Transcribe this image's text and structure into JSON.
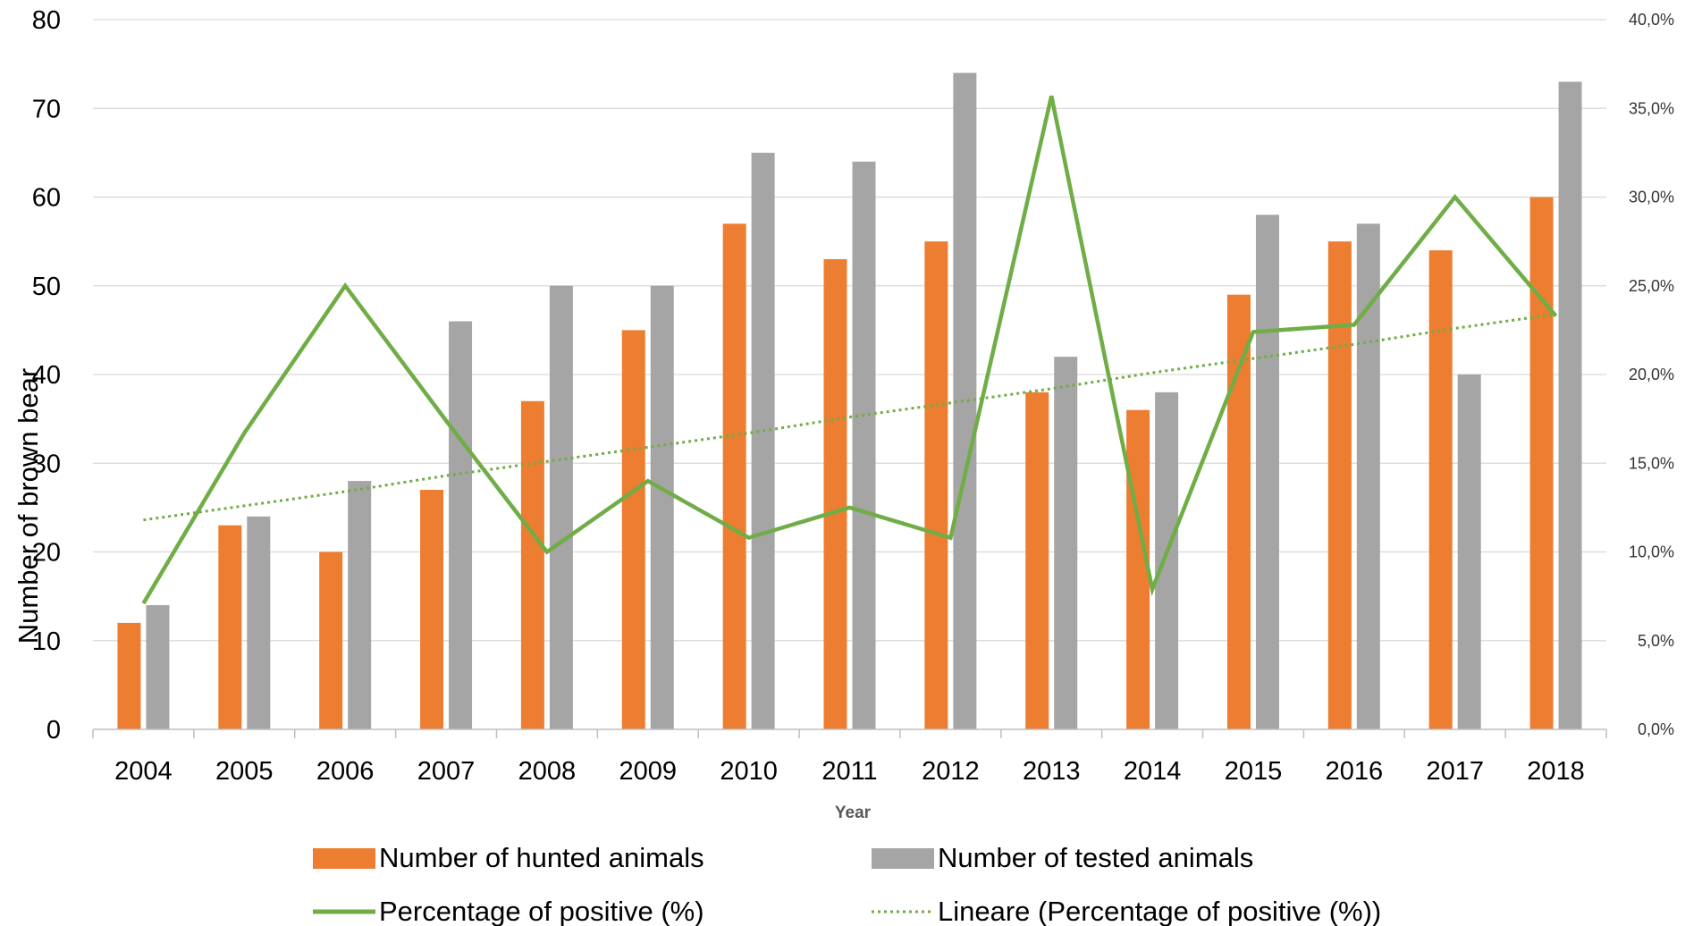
{
  "chart_data": {
    "type": "bar",
    "title": "",
    "xlabel": "Year",
    "ylabel": "Number of brown bear",
    "categories": [
      "2004",
      "2005",
      "2006",
      "2007",
      "2008",
      "2009",
      "2010",
      "2011",
      "2012",
      "2013",
      "2014",
      "2015",
      "2016",
      "2017",
      "2018"
    ],
    "series": [
      {
        "name": "Number of hunted animals",
        "kind": "bar",
        "axis": "left",
        "color": "#ED7D31",
        "values": [
          12,
          23,
          20,
          27,
          37,
          45,
          57,
          53,
          55,
          38,
          36,
          49,
          55,
          54,
          60
        ]
      },
      {
        "name": "Number of tested animals",
        "kind": "bar",
        "axis": "left",
        "color": "#A5A5A5",
        "values": [
          14,
          24,
          28,
          46,
          50,
          50,
          65,
          64,
          74,
          42,
          38,
          58,
          57,
          40,
          73
        ]
      },
      {
        "name": "Percentage of positive (%)",
        "kind": "line",
        "axis": "right",
        "color": "#70AD47",
        "values": [
          7.1,
          16.7,
          25.0,
          17.4,
          10.0,
          14.0,
          10.8,
          12.5,
          10.8,
          35.7,
          7.9,
          22.4,
          22.8,
          30.0,
          23.3
        ]
      },
      {
        "name": "Lineare (Percentage of positive (%))",
        "kind": "trendline",
        "axis": "right",
        "color": "#70AD47",
        "values": [
          11.8,
          12.6,
          13.4,
          14.3,
          15.1,
          15.9,
          16.7,
          17.6,
          18.4,
          19.2,
          20.1,
          20.9,
          21.7,
          22.6,
          23.4
        ]
      }
    ],
    "yleft": {
      "lim": [
        0,
        80
      ],
      "ticks": [
        "0",
        "10",
        "20",
        "30",
        "40",
        "50",
        "60",
        "70",
        "80"
      ]
    },
    "yright": {
      "lim": [
        0,
        40
      ],
      "ticks": [
        "0,0%",
        "5,0%",
        "10,0%",
        "15,0%",
        "20,0%",
        "25,0%",
        "30,0%",
        "35,0%",
        "40,0%"
      ]
    },
    "grid": true,
    "legend_position": "bottom"
  }
}
